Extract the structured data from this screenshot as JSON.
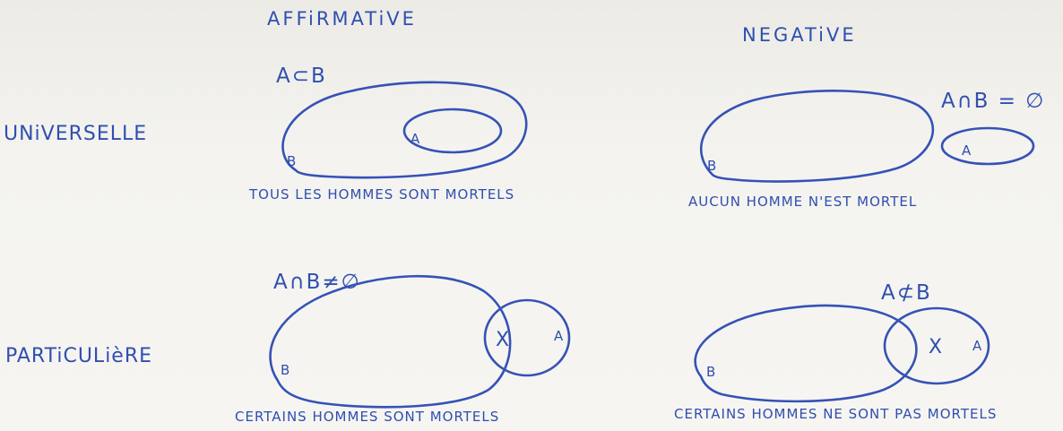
{
  "columns": {
    "affirmative": "AFFiRMATiVE",
    "negative": "NEGATiVE"
  },
  "rows": {
    "universal": "UNiVERSELLE",
    "particular": "PARTiCULièRE"
  },
  "cells": {
    "universal_affirmative": {
      "relation": "A⊂B",
      "caption": "TOUS LES HOMMES SONT MORTELS",
      "outer_set": "B",
      "inner_set": "A"
    },
    "universal_negative": {
      "relation": "A∩B = ∅",
      "caption": "AUCUN HOMME N'EST MORTEL",
      "big_set": "B",
      "small_set": "A"
    },
    "particular_affirmative": {
      "relation": "A∩B≠∅",
      "caption": "CERTAINS HOMMES SONT MORTELS",
      "big_set": "B",
      "small_set": "A",
      "marker": "X"
    },
    "particular_negative": {
      "relation": "A⊄B",
      "caption": "CERTAINS HOMMES NE SONT PAS MORTELS",
      "big_set": "B",
      "small_set": "A",
      "marker": "X"
    }
  },
  "ink_color": "#3552b6"
}
